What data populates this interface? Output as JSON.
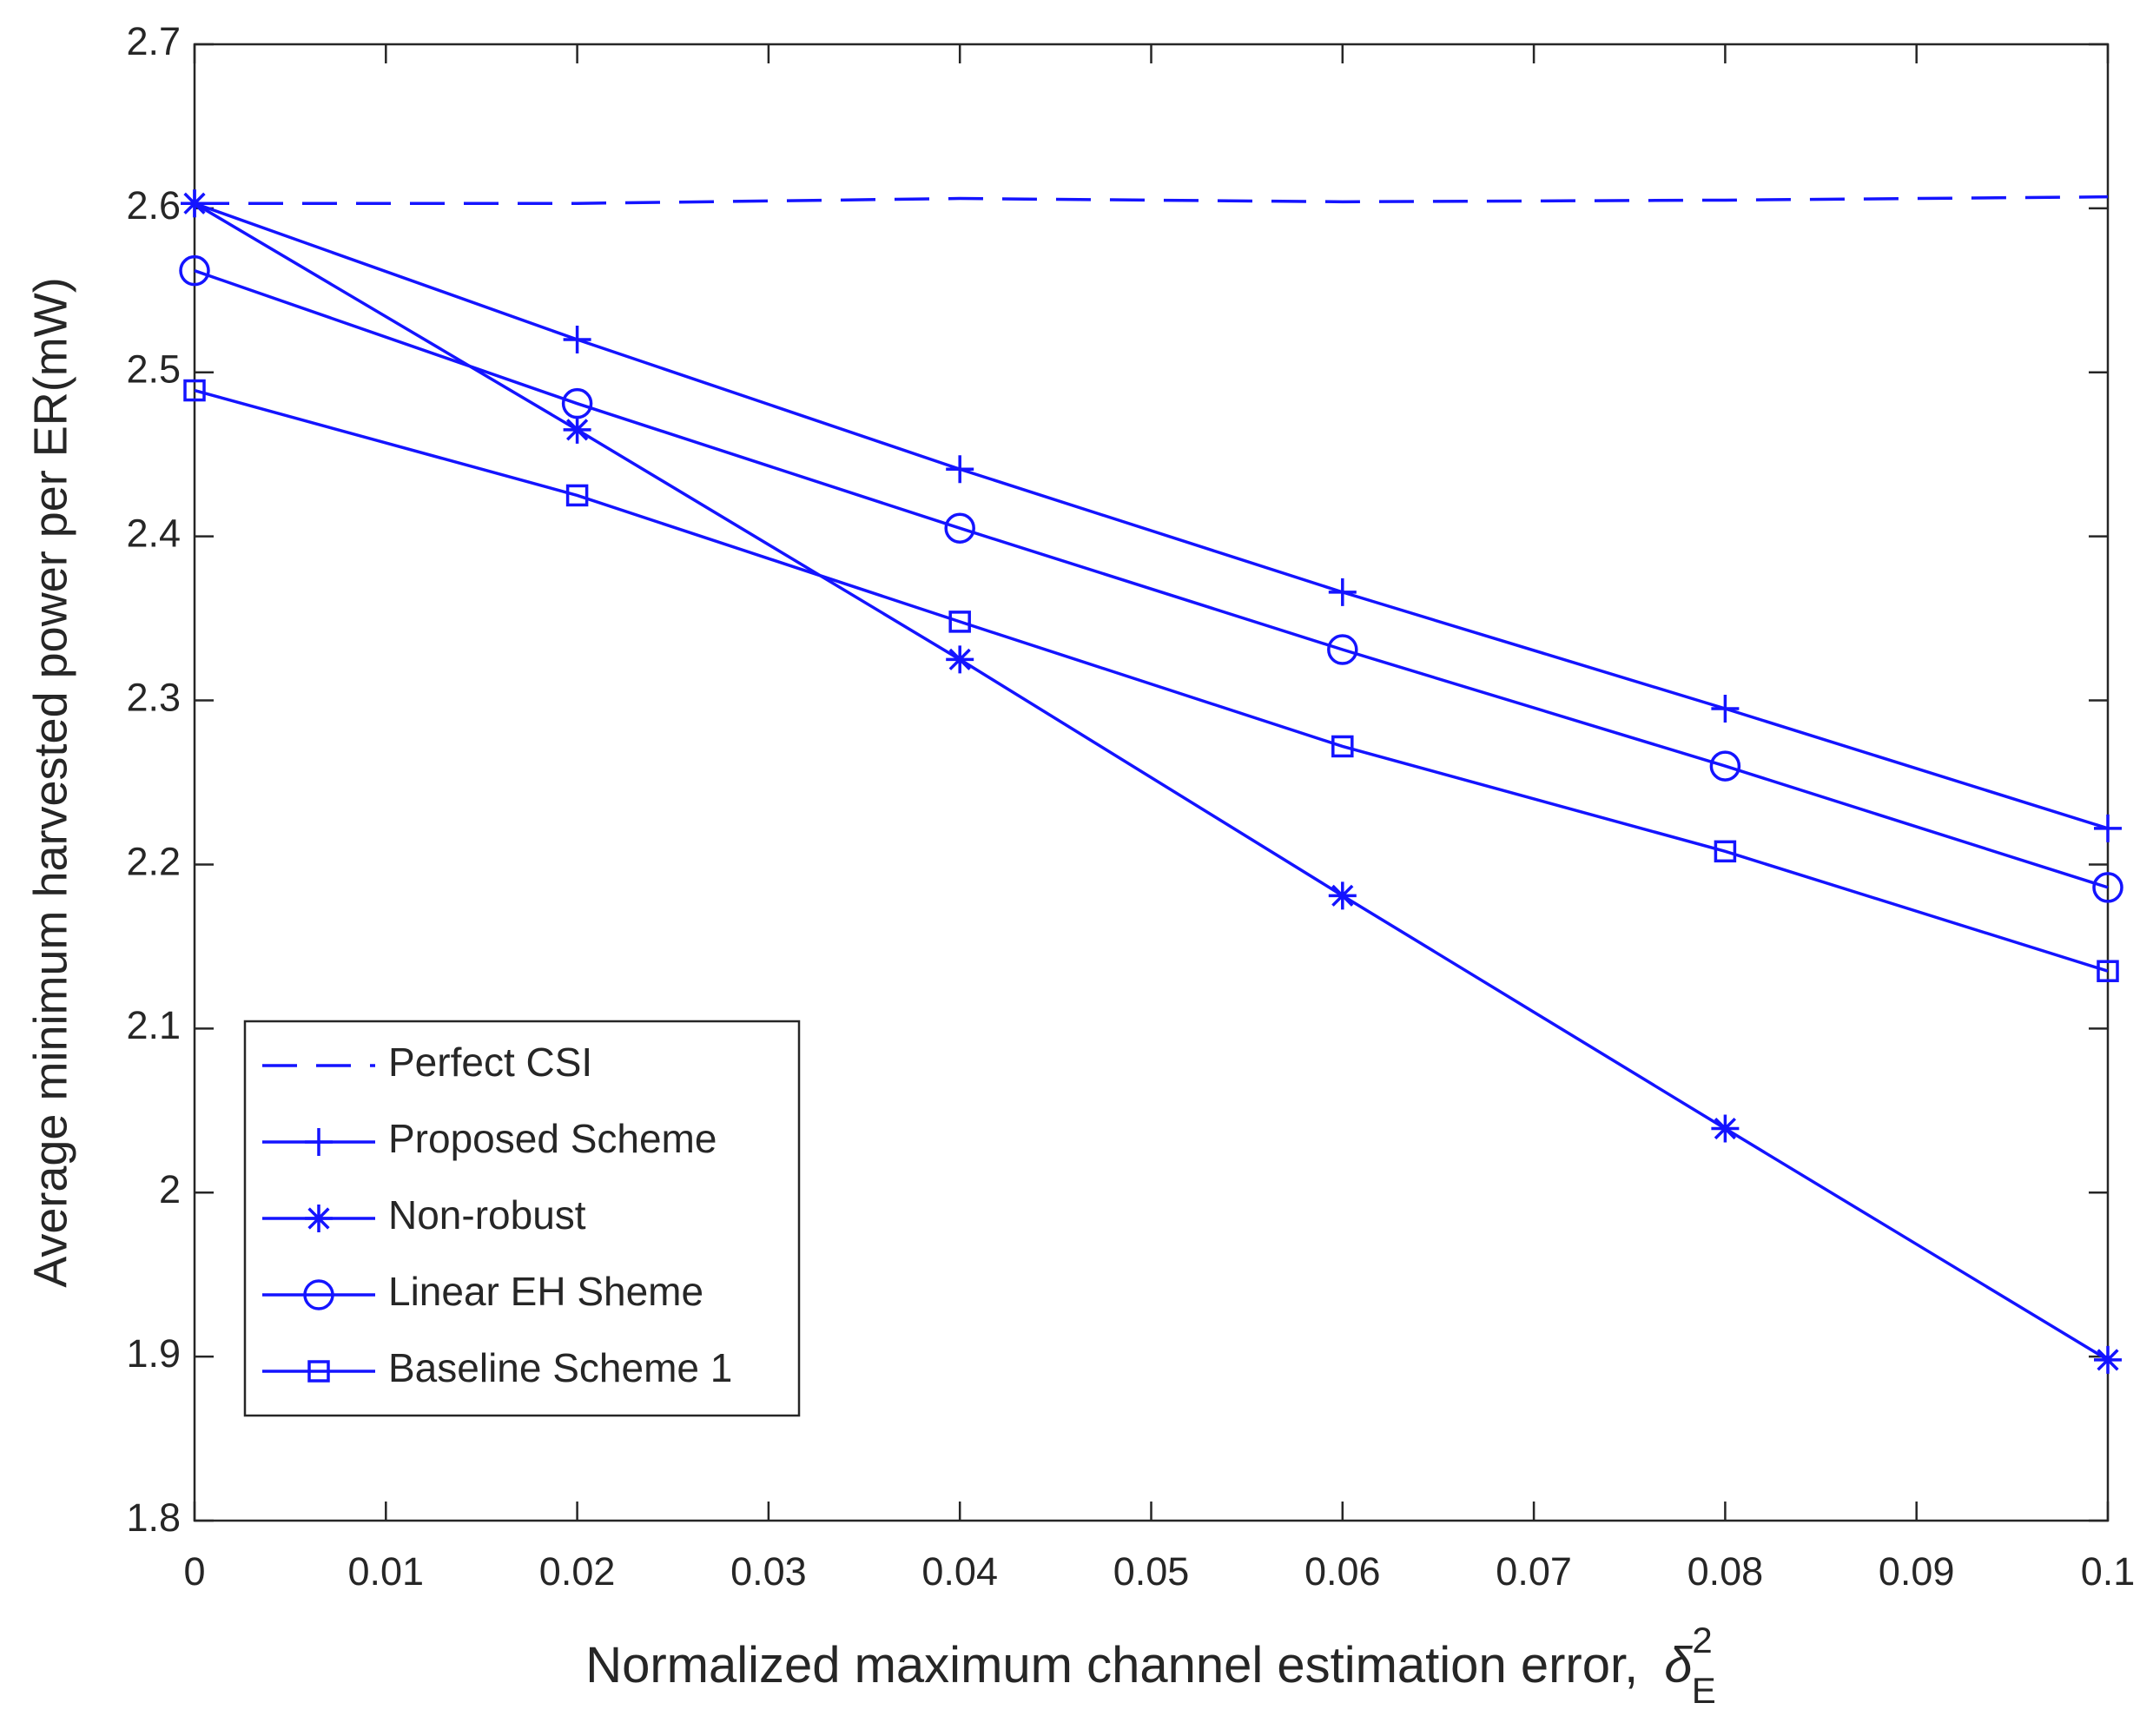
{
  "chart_data": {
    "type": "line",
    "xlabel": "Normalized maximum channel estimation error,",
    "xlabel_symbol": "δ",
    "xlabel_superscript": "2",
    "xlabel_subscript": "E",
    "ylabel": "Average minimum harvested power per ER(mW)",
    "x": [
      0,
      0.02,
      0.04,
      0.06,
      0.08,
      0.1
    ],
    "series": [
      {
        "name": "Perfect CSI",
        "color": "#1414ff",
        "dash": true,
        "marker": "none",
        "values": [
          2.603,
          2.603,
          2.606,
          2.604,
          2.605,
          2.607
        ]
      },
      {
        "name": "Proposed Scheme",
        "color": "#1414ff",
        "dash": false,
        "marker": "plus",
        "values": [
          2.603,
          2.52,
          2.441,
          2.366,
          2.295,
          2.222
        ]
      },
      {
        "name": "Non-robust",
        "color": "#1414ff",
        "dash": false,
        "marker": "star",
        "values": [
          2.603,
          2.465,
          2.325,
          2.181,
          2.039,
          1.898
        ]
      },
      {
        "name": "Linear EH Sheme",
        "color": "#1414ff",
        "dash": false,
        "marker": "circle",
        "values": [
          2.562,
          2.481,
          2.405,
          2.331,
          2.26,
          2.186
        ]
      },
      {
        "name": "Baseline Scheme 1",
        "color": "#1414ff",
        "dash": false,
        "marker": "square",
        "values": [
          2.489,
          2.425,
          2.348,
          2.272,
          2.208,
          2.135
        ]
      }
    ],
    "xlim": [
      0,
      0.1
    ],
    "xticks": [
      0,
      0.01,
      0.02,
      0.03,
      0.04,
      0.05,
      0.06,
      0.07,
      0.08,
      0.09,
      0.1
    ],
    "ylim": [
      1.8,
      2.7
    ],
    "yticks": [
      1.8,
      1.9,
      2,
      2.1,
      2.2,
      2.3,
      2.4,
      2.5,
      2.6,
      2.7
    ],
    "grid": false,
    "legend": "lower left"
  }
}
